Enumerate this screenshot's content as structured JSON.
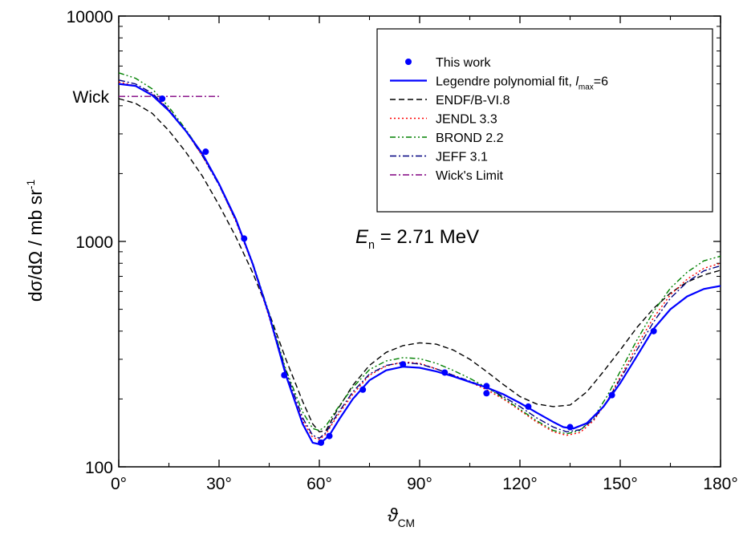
{
  "chart_data": {
    "type": "line",
    "xlabel_main": "ϑ",
    "xlabel_sub": "CM",
    "ylabel_main": "dσ/dΩ",
    "ylabel_units_prefix": "mb sr",
    "ylabel_units_sup": "-1",
    "ylabel_sep": "/",
    "xlim": [
      0,
      180
    ],
    "ylim": [
      100,
      10000
    ],
    "yscale": "log",
    "grid": false,
    "legend_position": "top-right",
    "x_ticks": [
      0,
      30,
      60,
      90,
      120,
      150,
      180
    ],
    "x_tick_labels": [
      "0°",
      "30°",
      "60°",
      "90°",
      "120°",
      "150°",
      "180°"
    ],
    "y_ticks": [
      100,
      1000,
      10000
    ],
    "y_tick_labels": [
      "100",
      "1000",
      "10000"
    ],
    "y_extra_label": {
      "text": "Wick",
      "y": 4400
    },
    "annotation": {
      "main": "E",
      "sub": "n",
      "rest": " = 2.71 MeV"
    },
    "series": [
      {
        "name": "This work",
        "kind": "points",
        "color": "#0000ff",
        "x": [
          13,
          26,
          37.5,
          49.5,
          60.5,
          63,
          73,
          85,
          97.5,
          110,
          110,
          122.5,
          135,
          147.5,
          160
        ],
        "y": [
          4300,
          2500,
          1030,
          255,
          128,
          137,
          220,
          285,
          262,
          228,
          212,
          185,
          150,
          208,
          400
        ],
        "yerr": [
          80,
          50,
          20,
          5,
          3,
          3,
          4,
          5,
          5,
          5,
          5,
          4,
          3,
          5,
          8
        ]
      },
      {
        "name": "Legendre polynomial fit, ",
        "name_italic": "l",
        "name_sub": "max",
        "name_tail": "=6",
        "kind": "line",
        "dash": "",
        "color": "#0000ff",
        "width": 2.2,
        "x": [
          0,
          5,
          10,
          15,
          20,
          25,
          30,
          35,
          40,
          45,
          50,
          55,
          58,
          60,
          63,
          66,
          70,
          75,
          80,
          85,
          90,
          95,
          100,
          105,
          110,
          115,
          120,
          125,
          130,
          133,
          136,
          140,
          145,
          150,
          155,
          160,
          165,
          170,
          175,
          180
        ],
        "y": [
          5000,
          4900,
          4450,
          3800,
          3100,
          2450,
          1800,
          1260,
          800,
          470,
          255,
          155,
          128,
          126,
          138,
          163,
          200,
          242,
          268,
          278,
          275,
          265,
          252,
          238,
          225,
          210,
          192,
          174,
          158,
          150,
          148,
          156,
          185,
          235,
          310,
          410,
          500,
          570,
          615,
          635
        ]
      },
      {
        "name": "ENDF/B-VI.8",
        "kind": "line",
        "dash": "7,4",
        "color": "#000000",
        "width": 1.4,
        "x": [
          0,
          5,
          10,
          15,
          20,
          25,
          30,
          35,
          40,
          45,
          50,
          55,
          58,
          60,
          62,
          65,
          70,
          75,
          80,
          85,
          90,
          95,
          100,
          105,
          110,
          115,
          120,
          125,
          130,
          135,
          140,
          145,
          150,
          155,
          160,
          165,
          170,
          175,
          180
        ],
        "y": [
          4300,
          4100,
          3700,
          3100,
          2500,
          1950,
          1450,
          1050,
          730,
          480,
          300,
          195,
          155,
          143,
          145,
          175,
          230,
          282,
          322,
          345,
          355,
          350,
          330,
          300,
          265,
          232,
          205,
          190,
          185,
          188,
          215,
          265,
          330,
          415,
          505,
          590,
          660,
          710,
          745
        ]
      },
      {
        "name": "JENDL 3.3",
        "kind": "line",
        "dash": "2,3",
        "color": "#ff0000",
        "width": 1.4,
        "x": [
          0,
          5,
          10,
          15,
          20,
          25,
          30,
          35,
          40,
          45,
          50,
          55,
          58,
          60,
          62,
          65,
          70,
          75,
          80,
          85,
          90,
          95,
          100,
          105,
          110,
          115,
          120,
          125,
          130,
          134,
          138,
          142,
          146,
          150,
          155,
          160,
          165,
          170,
          175,
          180
        ],
        "y": [
          5100,
          4900,
          4500,
          3850,
          3100,
          2400,
          1780,
          1230,
          790,
          460,
          255,
          160,
          135,
          132,
          140,
          165,
          210,
          255,
          280,
          292,
          288,
          272,
          255,
          238,
          220,
          200,
          178,
          158,
          143,
          138,
          142,
          160,
          195,
          250,
          345,
          460,
          580,
          680,
          760,
          800
        ]
      },
      {
        "name": "BROND 2.2",
        "kind": "line",
        "dash": "7,3,2,3,2,3",
        "color": "#008000",
        "width": 1.4,
        "x": [
          0,
          5,
          10,
          15,
          20,
          25,
          30,
          35,
          40,
          45,
          50,
          55,
          58,
          60,
          62,
          65,
          70,
          75,
          80,
          85,
          90,
          95,
          100,
          105,
          110,
          115,
          120,
          125,
          130,
          134,
          138,
          142,
          146,
          150,
          155,
          160,
          165,
          170,
          175,
          180
        ],
        "y": [
          5600,
          5300,
          4750,
          3950,
          3150,
          2450,
          1800,
          1250,
          810,
          480,
          270,
          175,
          148,
          145,
          152,
          178,
          225,
          270,
          295,
          305,
          302,
          288,
          268,
          247,
          225,
          202,
          180,
          160,
          145,
          140,
          145,
          165,
          205,
          265,
          365,
          490,
          620,
          730,
          820,
          860
        ]
      },
      {
        "name": "JEFF 3.1",
        "kind": "line",
        "dash": "8,3,2,3",
        "color": "#000080",
        "width": 1.4,
        "x": [
          0,
          5,
          10,
          15,
          20,
          25,
          30,
          35,
          40,
          45,
          50,
          55,
          58,
          60,
          62,
          65,
          70,
          75,
          80,
          85,
          90,
          95,
          100,
          105,
          110,
          115,
          120,
          125,
          130,
          134,
          138,
          142,
          146,
          150,
          155,
          160,
          165,
          170,
          175,
          180
        ],
        "y": [
          5200,
          5000,
          4550,
          3850,
          3100,
          2400,
          1780,
          1240,
          800,
          470,
          265,
          165,
          138,
          134,
          142,
          168,
          215,
          258,
          282,
          290,
          286,
          272,
          255,
          240,
          225,
          205,
          185,
          165,
          150,
          143,
          146,
          162,
          195,
          245,
          330,
          440,
          560,
          660,
          740,
          780
        ]
      },
      {
        "name": "Wick's Limit",
        "kind": "line",
        "dash": "8,3,2,3",
        "color": "#800080",
        "width": 1.4,
        "x": [
          0,
          30
        ],
        "y": [
          4400,
          4400
        ]
      }
    ]
  }
}
